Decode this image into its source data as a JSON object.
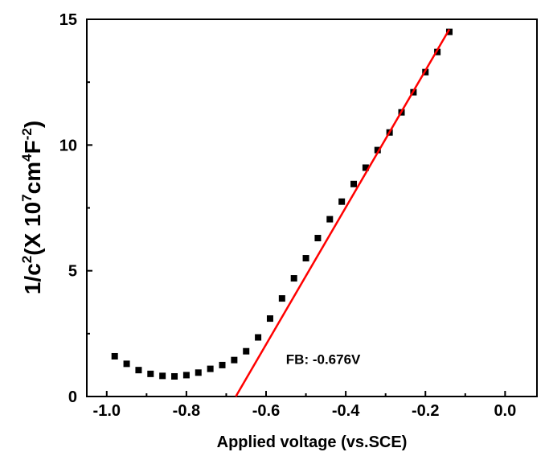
{
  "chart_data": {
    "type": "scatter",
    "title": "",
    "xlabel": "Applied voltage (vs.SCE)",
    "ylabel": {
      "base": "1/c",
      "exp1": "2",
      "mid": "(X 10",
      "exp2": "7",
      "unit1": "cm",
      "exp3": "4",
      "unit2": "F",
      "exp4": "-2",
      "close": ")"
    },
    "xlim": [
      -1.05,
      0.08
    ],
    "ylim": [
      0,
      15
    ],
    "x_ticks": [
      -1.0,
      -0.8,
      -0.6,
      -0.4,
      -0.2,
      0.0
    ],
    "x_tick_labels": [
      "-1.0",
      "-0.8",
      "-0.6",
      "-0.4",
      "-0.2",
      "0.0"
    ],
    "y_ticks": [
      0,
      5,
      10,
      15
    ],
    "y_tick_labels": [
      "0",
      "5",
      "10",
      "15"
    ],
    "grid": false,
    "series": [
      {
        "kind": "points",
        "color": "#000000",
        "x": [
          -0.98,
          -0.95,
          -0.92,
          -0.89,
          -0.86,
          -0.83,
          -0.8,
          -0.77,
          -0.74,
          -0.71,
          -0.68,
          -0.65,
          -0.62,
          -0.59,
          -0.56,
          -0.53,
          -0.5,
          -0.47,
          -0.44,
          -0.41,
          -0.38,
          -0.35,
          -0.32,
          -0.29,
          -0.26,
          -0.23,
          -0.2,
          -0.17,
          -0.14
        ],
        "y": [
          1.6,
          1.3,
          1.05,
          0.9,
          0.82,
          0.8,
          0.85,
          0.95,
          1.1,
          1.25,
          1.45,
          1.8,
          2.35,
          3.1,
          3.9,
          4.7,
          5.5,
          6.3,
          7.05,
          7.75,
          8.45,
          9.1,
          9.8,
          10.5,
          11.3,
          12.1,
          12.9,
          13.7,
          14.5
        ]
      },
      {
        "kind": "fit-line",
        "color": "#ff0000",
        "x": [
          -0.676,
          -0.14
        ],
        "y": [
          0,
          14.6
        ]
      }
    ],
    "annotations": [
      {
        "text": "FB: -0.676V",
        "x": -0.55,
        "y": 1.3
      }
    ]
  }
}
